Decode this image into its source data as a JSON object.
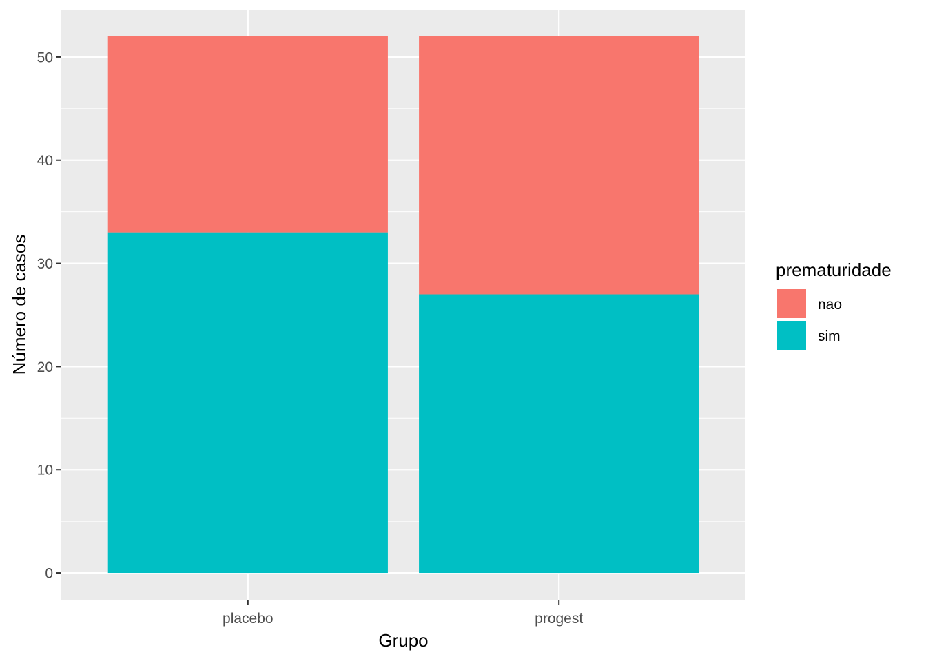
{
  "chart_data": {
    "type": "bar",
    "stacked": true,
    "categories": [
      "placebo",
      "progest"
    ],
    "series": [
      {
        "name": "sim",
        "values": [
          33,
          27
        ],
        "color": "#00BFC4"
      },
      {
        "name": "nao",
        "values": [
          19,
          25
        ],
        "color": "#F8766D"
      }
    ],
    "xlabel": "Grupo",
    "ylabel": "Número de casos",
    "ylim": [
      -2.6,
      54.6
    ],
    "yticks": [
      0,
      10,
      20,
      30,
      40,
      50
    ],
    "ytick_labels": [
      "0",
      "10",
      "20",
      "30",
      "40",
      "50"
    ],
    "grid": true,
    "panel_background": "#EBEBEB",
    "grid_color": "#FFFFFF",
    "legend": {
      "title": "prematuridade",
      "position": "right",
      "entries": [
        "nao",
        "sim"
      ]
    }
  }
}
